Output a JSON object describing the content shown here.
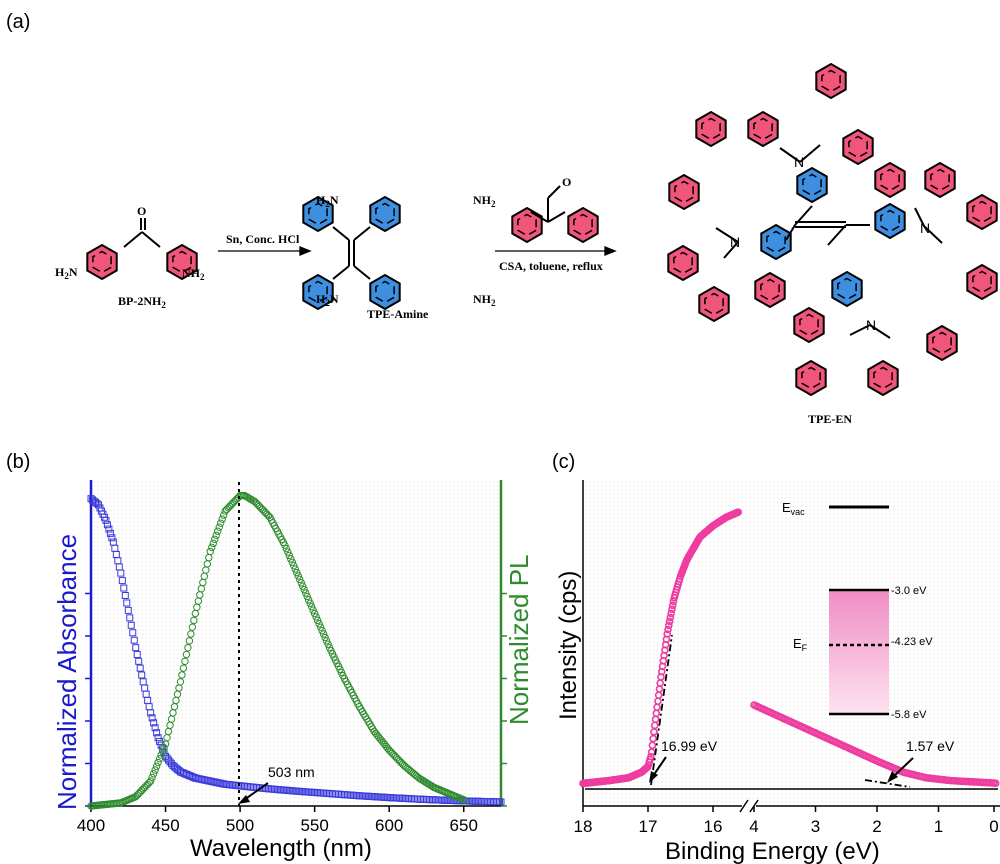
{
  "panels": {
    "a": "(a)",
    "b": "(b)",
    "c": "(c)"
  },
  "scheme": {
    "reactant": {
      "name": "BP-2NH",
      "sub": "2",
      "left_group": "H",
      "left_sub": "2",
      "left_tail": "N",
      "right_group": "NH",
      "right_sub": "2",
      "carbonyl": "O"
    },
    "step1": {
      "reagent": "Sn, Conc. HCl"
    },
    "intermediate": {
      "name": "TPE-Amine",
      "amine": "NH",
      "amine_sub": "2",
      "amine_left": "H",
      "amine_left_sub": "2",
      "amine_left_tail": "N"
    },
    "step2": {
      "reagent": "CSA, toluene, reflux",
      "aldehyde_O": "O"
    },
    "product": {
      "name": "TPE-EN",
      "n_label": "N"
    },
    "colors": {
      "ring_red": "#f0557a",
      "ring_blue": "#3f8fe0"
    }
  },
  "chart_data": [
    {
      "type": "scatter",
      "panel": "b",
      "xlabel": "Wavelength (nm)",
      "ylabel_left": "Normalized Absorbance",
      "ylabel_right": "Normalized PL",
      "xlim": [
        400,
        675
      ],
      "ylim": [
        0,
        1.05
      ],
      "x_ticks": [
        400,
        450,
        500,
        550,
        600,
        650
      ],
      "annotation": {
        "text": "503 nm",
        "x": 503
      },
      "series": [
        {
          "color": "#3b3bdc",
          "marker": "square",
          "x": [
            400,
            405,
            410,
            415,
            420,
            425,
            430,
            435,
            440,
            445,
            450,
            455,
            460,
            470,
            480,
            490,
            500,
            520,
            540,
            560,
            580,
            600,
            620,
            640,
            660,
            675
          ],
          "y": [
            0.99,
            0.97,
            0.92,
            0.85,
            0.75,
            0.63,
            0.51,
            0.4,
            0.3,
            0.22,
            0.16,
            0.13,
            0.11,
            0.09,
            0.08,
            0.07,
            0.065,
            0.055,
            0.047,
            0.04,
            0.033,
            0.027,
            0.022,
            0.018,
            0.015,
            0.013
          ]
        },
        {
          "color": "#2e8b2e",
          "marker": "circle",
          "x": [
            400,
            420,
            430,
            440,
            450,
            460,
            470,
            480,
            490,
            500,
            503,
            510,
            520,
            530,
            540,
            550,
            560,
            570,
            580,
            590,
            600,
            610,
            620,
            630,
            640,
            650
          ],
          "y": [
            0.0,
            0.01,
            0.03,
            0.08,
            0.2,
            0.4,
            0.62,
            0.82,
            0.95,
            1.0,
            1.0,
            0.98,
            0.93,
            0.84,
            0.73,
            0.62,
            0.51,
            0.41,
            0.32,
            0.24,
            0.18,
            0.13,
            0.09,
            0.06,
            0.04,
            0.02
          ]
        }
      ]
    },
    {
      "type": "scatter",
      "panel": "c",
      "xlabel": "Binding Energy (eV)",
      "ylabel": "Intensity (cps)",
      "x_ticks_left": [
        18,
        17,
        16
      ],
      "x_ticks_right": [
        4,
        3,
        2,
        1,
        0
      ],
      "annotations": [
        {
          "text": "16.99 eV",
          "x": 16.99
        },
        {
          "text": "1.57 eV",
          "x": 1.57
        }
      ],
      "series": [
        {
          "color": "#ee3ca0",
          "segment": "high",
          "x": [
            18.0,
            17.6,
            17.3,
            17.1,
            17.0,
            16.95,
            16.9,
            16.8,
            16.7,
            16.6,
            16.5,
            16.4,
            16.3,
            16.2,
            16.1,
            16.0,
            15.8,
            15.6
          ],
          "y": [
            0.02,
            0.03,
            0.04,
            0.06,
            0.08,
            0.12,
            0.22,
            0.4,
            0.56,
            0.68,
            0.76,
            0.82,
            0.86,
            0.9,
            0.92,
            0.94,
            0.97,
            0.99
          ]
        },
        {
          "color": "#ee3ca0",
          "segment": "low",
          "x": [
            4.0,
            3.5,
            3.0,
            2.5,
            2.0,
            1.57,
            1.2,
            0.8,
            0.4,
            0.0
          ],
          "y": [
            0.3,
            0.25,
            0.2,
            0.15,
            0.1,
            0.06,
            0.04,
            0.03,
            0.025,
            0.02
          ]
        }
      ],
      "inset": {
        "e_vac": "E",
        "e_vac_sub": "vac",
        "e_f": "E",
        "e_f_sub": "F",
        "levels": [
          "-3.0 eV",
          "-4.23 eV",
          "-5.8 eV"
        ],
        "band_color": "#f5a9d0"
      }
    }
  ]
}
